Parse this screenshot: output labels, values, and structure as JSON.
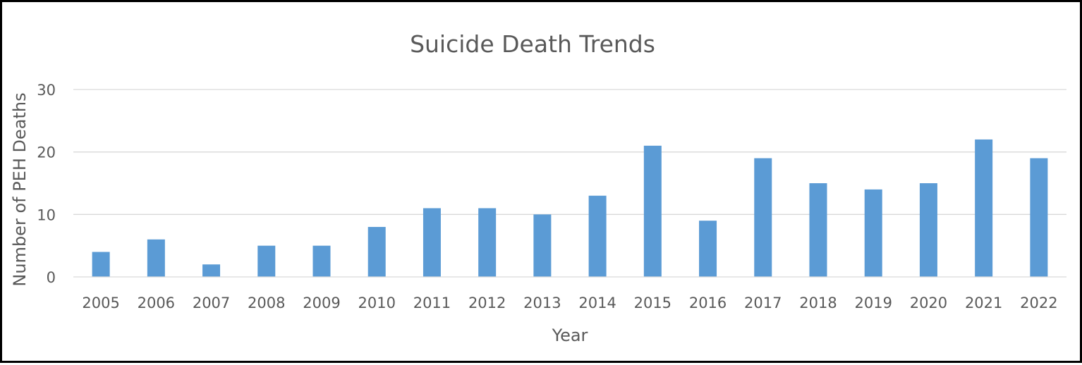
{
  "chart_data": {
    "type": "bar",
    "title": "Suicide Death Trends",
    "xlabel": "Year",
    "ylabel": "Number of PEH Deaths",
    "categories": [
      "2005",
      "2006",
      "2007",
      "2008",
      "2009",
      "2010",
      "2011",
      "2012",
      "2013",
      "2014",
      "2015",
      "2016",
      "2017",
      "2018",
      "2019",
      "2020",
      "2021",
      "2022"
    ],
    "values": [
      4,
      6,
      2,
      5,
      5,
      8,
      11,
      11,
      10,
      13,
      21,
      9,
      19,
      15,
      14,
      15,
      22,
      19
    ],
    "ylim": [
      0,
      30
    ],
    "yticks": [
      "0",
      "10",
      "20",
      "30"
    ],
    "grid": true,
    "legend": "none",
    "bar_color": "#5b9bd5"
  }
}
